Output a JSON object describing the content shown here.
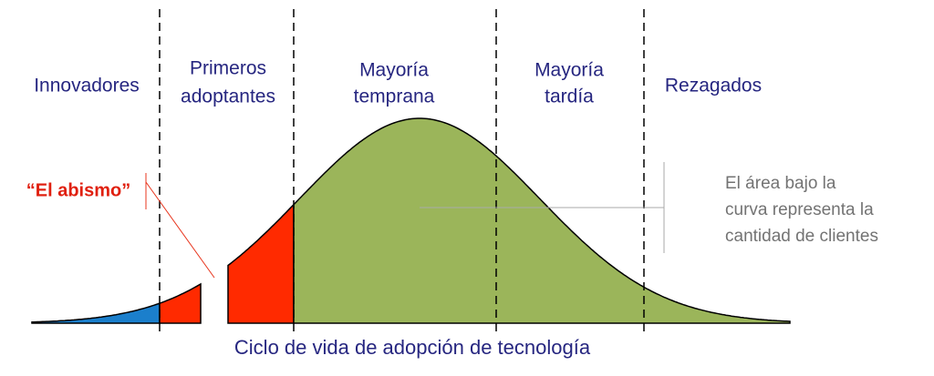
{
  "segments": [
    [
      "Innovadores"
    ],
    [
      "Primeros",
      "adoptantes"
    ],
    [
      "Mayoría",
      "temprana"
    ],
    [
      "Mayoría",
      "tardía"
    ],
    [
      "Rezagados"
    ]
  ],
  "chasm_label": "“El abismo”",
  "annotation": [
    "El área bajo la",
    "curva representa la",
    "cantidad de clientes"
  ],
  "title": "Ciclo de vida de adopción de tecnología"
}
